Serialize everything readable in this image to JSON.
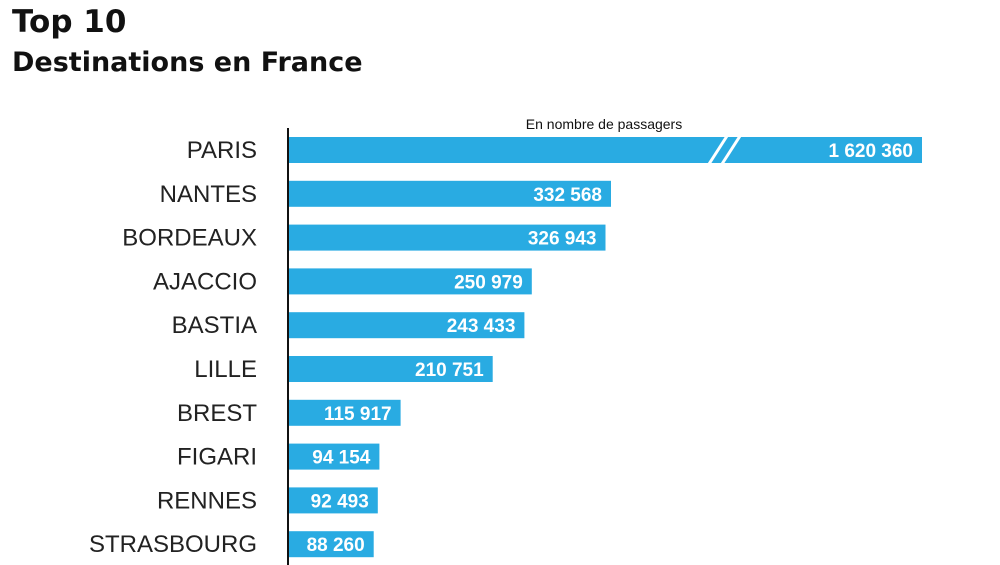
{
  "title": "Top 10",
  "subtitle": "Destinations en France",
  "colors": {
    "bar": "#29abe2",
    "axis": "#111111",
    "break": "#ffffff"
  },
  "chart_data": {
    "type": "bar",
    "orientation": "horizontal",
    "unit_label": "En nombre de passagers",
    "categories": [
      "PARIS",
      "NANTES",
      "BORDEAUX",
      "AJACCIO",
      "BASTIA",
      "LILLE",
      "BREST",
      "FIGARI",
      "RENNES",
      "STRASBOURG"
    ],
    "values": [
      1620360,
      332568,
      326943,
      250979,
      243433,
      210751,
      115917,
      94154,
      92493,
      88260
    ],
    "value_labels": [
      "1 620 360",
      "332 568",
      "326 943",
      "250 979",
      "243 433",
      "210 751",
      "115 917",
      "94 154",
      "92 493",
      "88 260"
    ],
    "axis_break": {
      "category": "PARIS"
    }
  }
}
